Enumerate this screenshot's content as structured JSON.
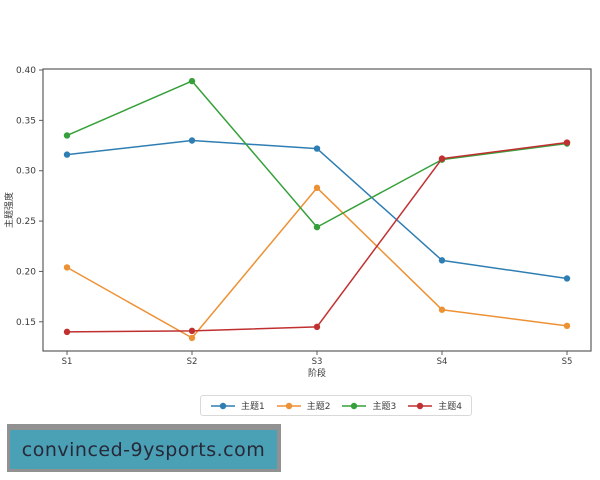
{
  "chart_data": {
    "type": "line",
    "title": "",
    "xlabel": "阶段",
    "ylabel": "主题强度",
    "categories": [
      "S1",
      "S2",
      "S3",
      "S4",
      "S5"
    ],
    "series": [
      {
        "name": "主题1",
        "color": "#2e7eb3",
        "values": [
          0.316,
          0.33,
          0.322,
          0.211,
          0.193
        ]
      },
      {
        "name": "主题2",
        "color": "#ed9135",
        "values": [
          0.204,
          0.134,
          0.283,
          0.162,
          0.146
        ]
      },
      {
        "name": "主题3",
        "color": "#35a03a",
        "values": [
          0.335,
          0.389,
          0.244,
          0.311,
          0.327
        ]
      },
      {
        "name": "主题4",
        "color": "#c03030",
        "values": [
          0.14,
          0.141,
          0.145,
          0.312,
          0.328
        ]
      }
    ],
    "ylim": [
      0.121,
      0.401
    ],
    "yticks": [
      0.15,
      0.2,
      0.25,
      0.3,
      0.35,
      0.4
    ],
    "ytick_labels": [
      "0.15",
      "0.20",
      "0.25",
      "0.30",
      "0.35",
      "0.40"
    ],
    "legend_position": "bottom-center",
    "grid": false,
    "marker": "circle"
  },
  "watermark": {
    "text": "convinced-9ysports.com",
    "box_color": "#4aa0b5",
    "shadow_color": "#919191",
    "text_color": "#272838"
  }
}
